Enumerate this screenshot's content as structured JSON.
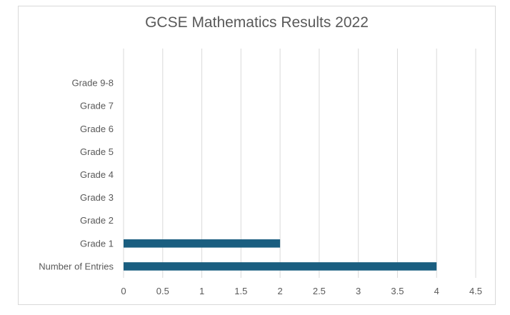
{
  "chart_data": {
    "type": "bar",
    "orientation": "horizontal",
    "title": "GCSE Mathematics Results 2022",
    "categories": [
      "Number of Entries",
      "Grade 1",
      "Grade 2",
      "Grade 3",
      "Grade 4",
      "Grade 5",
      "Grade 6",
      "Grade 7",
      "Grade 9-8"
    ],
    "values": [
      4,
      2,
      null,
      null,
      null,
      null,
      null,
      null,
      null
    ],
    "xlabel": "",
    "ylabel": "",
    "xlim": [
      0,
      4.5
    ],
    "xticks": [
      "0",
      "0.5",
      "1",
      "1.5",
      "2",
      "2.5",
      "3",
      "3.5",
      "4",
      "4.5"
    ],
    "grid": "vertical",
    "legend": "none",
    "bar_color": "#1a5e80",
    "grid_color": "#d9d9d9"
  }
}
